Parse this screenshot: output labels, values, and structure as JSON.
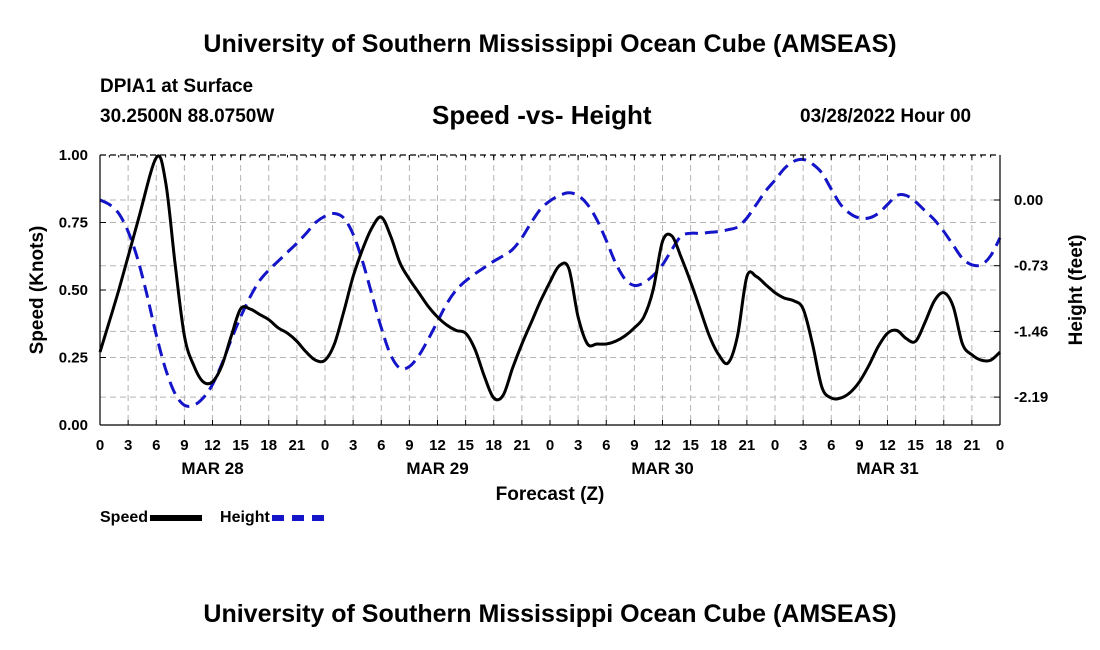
{
  "header": {
    "title": "University of Southern Mississippi Ocean Cube (AMSEAS)",
    "station": "DPIA1 at Surface",
    "coords": "30.2500N  88.0750W",
    "datetime": "03/28/2022 Hour 00"
  },
  "footer": {
    "title": "University of Southern Mississippi Ocean Cube (AMSEAS)"
  },
  "chart_data": {
    "type": "line",
    "title": "Speed -vs- Height",
    "xlabel": "Forecast (Z)",
    "ylabel_left": "Speed (Knots)",
    "ylabel_right": "Height (feet)",
    "x_unit": "forecast hour",
    "xlim": [
      0,
      96
    ],
    "ylim_left": [
      0,
      1.0
    ],
    "ylim_right": [
      -2.5,
      0.5
    ],
    "grid": true,
    "x_ticks": [
      0,
      3,
      6,
      9,
      12,
      15,
      18,
      21,
      24,
      27,
      30,
      33,
      36,
      39,
      42,
      45,
      48,
      51,
      54,
      57,
      60,
      63,
      66,
      69,
      72,
      75,
      78,
      81,
      84,
      87,
      90,
      93,
      96
    ],
    "x_tick_labels": [
      "0",
      "3",
      "6",
      "9",
      "12",
      "15",
      "18",
      "21",
      "0",
      "3",
      "6",
      "9",
      "12",
      "15",
      "18",
      "21",
      "0",
      "3",
      "6",
      "9",
      "12",
      "15",
      "18",
      "21",
      "0",
      "3",
      "6",
      "9",
      "12",
      "15",
      "18",
      "21",
      "0"
    ],
    "day_labels": [
      {
        "label": "MAR 28",
        "hour": 12
      },
      {
        "label": "MAR 29",
        "hour": 36
      },
      {
        "label": "MAR 30",
        "hour": 60
      },
      {
        "label": "MAR 31",
        "hour": 84
      }
    ],
    "y_left_ticks": [
      0.0,
      0.25,
      0.5,
      0.75,
      1.0
    ],
    "y_left_tick_labels": [
      "0.00",
      "0.25",
      "0.50",
      "0.75",
      "1.00"
    ],
    "y_right_ticks": [
      0.0,
      -0.73,
      -1.46,
      -2.19
    ],
    "y_right_tick_labels": [
      "0.00",
      "-0.73",
      "-1.46",
      "-2.19"
    ],
    "series": [
      {
        "name": "Speed",
        "axis": "left",
        "color": "#000000",
        "dash": "solid",
        "points": [
          [
            0,
            0.27
          ],
          [
            2,
            0.5
          ],
          [
            4,
            0.75
          ],
          [
            6,
            0.99
          ],
          [
            7,
            0.9
          ],
          [
            8,
            0.6
          ],
          [
            9,
            0.33
          ],
          [
            10,
            0.22
          ],
          [
            11,
            0.16
          ],
          [
            12,
            0.16
          ],
          [
            13,
            0.22
          ],
          [
            14,
            0.33
          ],
          [
            15,
            0.43
          ],
          [
            16,
            0.43
          ],
          [
            17,
            0.41
          ],
          [
            18,
            0.39
          ],
          [
            19,
            0.36
          ],
          [
            20,
            0.34
          ],
          [
            21,
            0.31
          ],
          [
            22,
            0.27
          ],
          [
            23,
            0.24
          ],
          [
            24,
            0.24
          ],
          [
            25,
            0.3
          ],
          [
            26,
            0.42
          ],
          [
            27,
            0.55
          ],
          [
            28,
            0.65
          ],
          [
            29,
            0.73
          ],
          [
            30,
            0.77
          ],
          [
            31,
            0.7
          ],
          [
            32,
            0.6
          ],
          [
            33,
            0.54
          ],
          [
            34,
            0.49
          ],
          [
            35,
            0.44
          ],
          [
            36,
            0.4
          ],
          [
            37,
            0.37
          ],
          [
            38,
            0.35
          ],
          [
            39,
            0.34
          ],
          [
            40,
            0.28
          ],
          [
            41,
            0.18
          ],
          [
            42,
            0.1
          ],
          [
            43,
            0.11
          ],
          [
            44,
            0.21
          ],
          [
            45,
            0.3
          ],
          [
            46,
            0.38
          ],
          [
            47,
            0.46
          ],
          [
            48,
            0.53
          ],
          [
            49,
            0.59
          ],
          [
            50,
            0.58
          ],
          [
            51,
            0.4
          ],
          [
            52,
            0.3
          ],
          [
            53,
            0.3
          ],
          [
            54,
            0.3
          ],
          [
            55,
            0.31
          ],
          [
            56,
            0.33
          ],
          [
            57,
            0.36
          ],
          [
            58,
            0.4
          ],
          [
            59,
            0.5
          ],
          [
            60,
            0.68
          ],
          [
            61,
            0.7
          ],
          [
            62,
            0.62
          ],
          [
            63,
            0.53
          ],
          [
            64,
            0.43
          ],
          [
            65,
            0.33
          ],
          [
            66,
            0.26
          ],
          [
            67,
            0.23
          ],
          [
            68,
            0.33
          ],
          [
            69,
            0.55
          ],
          [
            70,
            0.55
          ],
          [
            71,
            0.52
          ],
          [
            72,
            0.49
          ],
          [
            73,
            0.47
          ],
          [
            74,
            0.46
          ],
          [
            75,
            0.43
          ],
          [
            76,
            0.3
          ],
          [
            77,
            0.14
          ],
          [
            78,
            0.1
          ],
          [
            79,
            0.1
          ],
          [
            80,
            0.12
          ],
          [
            81,
            0.16
          ],
          [
            82,
            0.22
          ],
          [
            83,
            0.29
          ],
          [
            84,
            0.34
          ],
          [
            85,
            0.35
          ],
          [
            86,
            0.32
          ],
          [
            87,
            0.31
          ],
          [
            88,
            0.38
          ],
          [
            89,
            0.46
          ],
          [
            90,
            0.49
          ],
          [
            91,
            0.44
          ],
          [
            92,
            0.3
          ],
          [
            93,
            0.26
          ],
          [
            94,
            0.24
          ],
          [
            95,
            0.24
          ],
          [
            96,
            0.27
          ]
        ]
      },
      {
        "name": "Height",
        "axis": "right",
        "color": "#1414c8",
        "dash": "dashed",
        "points": [
          [
            0,
            0.0
          ],
          [
            1,
            -0.05
          ],
          [
            2,
            -0.15
          ],
          [
            3,
            -0.35
          ],
          [
            4,
            -0.65
          ],
          [
            5,
            -1.05
          ],
          [
            6,
            -1.5
          ],
          [
            7,
            -1.88
          ],
          [
            8,
            -2.15
          ],
          [
            9,
            -2.28
          ],
          [
            10,
            -2.28
          ],
          [
            11,
            -2.2
          ],
          [
            12,
            -2.05
          ],
          [
            13,
            -1.82
          ],
          [
            14,
            -1.55
          ],
          [
            15,
            -1.3
          ],
          [
            16,
            -1.08
          ],
          [
            17,
            -0.9
          ],
          [
            18,
            -0.78
          ],
          [
            19,
            -0.68
          ],
          [
            20,
            -0.58
          ],
          [
            21,
            -0.48
          ],
          [
            22,
            -0.37
          ],
          [
            23,
            -0.25
          ],
          [
            24,
            -0.18
          ],
          [
            25,
            -0.15
          ],
          [
            26,
            -0.2
          ],
          [
            27,
            -0.38
          ],
          [
            28,
            -0.68
          ],
          [
            29,
            -1.05
          ],
          [
            30,
            -1.42
          ],
          [
            31,
            -1.72
          ],
          [
            32,
            -1.87
          ],
          [
            33,
            -1.85
          ],
          [
            34,
            -1.73
          ],
          [
            35,
            -1.55
          ],
          [
            36,
            -1.35
          ],
          [
            37,
            -1.15
          ],
          [
            38,
            -1.0
          ],
          [
            39,
            -0.9
          ],
          [
            40,
            -0.82
          ],
          [
            41,
            -0.75
          ],
          [
            42,
            -0.68
          ],
          [
            43,
            -0.62
          ],
          [
            44,
            -0.55
          ],
          [
            45,
            -0.42
          ],
          [
            46,
            -0.25
          ],
          [
            47,
            -0.1
          ],
          [
            48,
            -0.01
          ],
          [
            49,
            0.05
          ],
          [
            50,
            0.08
          ],
          [
            51,
            0.05
          ],
          [
            52,
            -0.05
          ],
          [
            53,
            -0.22
          ],
          [
            54,
            -0.45
          ],
          [
            55,
            -0.7
          ],
          [
            56,
            -0.88
          ],
          [
            57,
            -0.95
          ],
          [
            58,
            -0.92
          ],
          [
            59,
            -0.84
          ],
          [
            60,
            -0.72
          ],
          [
            61,
            -0.55
          ],
          [
            62,
            -0.4
          ],
          [
            63,
            -0.37
          ],
          [
            64,
            -0.37
          ],
          [
            65,
            -0.36
          ],
          [
            66,
            -0.35
          ],
          [
            67,
            -0.33
          ],
          [
            68,
            -0.3
          ],
          [
            69,
            -0.2
          ],
          [
            70,
            -0.05
          ],
          [
            71,
            0.1
          ],
          [
            72,
            0.22
          ],
          [
            73,
            0.35
          ],
          [
            74,
            0.43
          ],
          [
            75,
            0.45
          ],
          [
            76,
            0.4
          ],
          [
            77,
            0.3
          ],
          [
            78,
            0.12
          ],
          [
            79,
            -0.05
          ],
          [
            80,
            -0.15
          ],
          [
            81,
            -0.2
          ],
          [
            82,
            -0.2
          ],
          [
            83,
            -0.15
          ],
          [
            84,
            -0.05
          ],
          [
            85,
            0.05
          ],
          [
            86,
            0.05
          ],
          [
            87,
            -0.02
          ],
          [
            88,
            -0.12
          ],
          [
            89,
            -0.22
          ],
          [
            90,
            -0.35
          ],
          [
            91,
            -0.5
          ],
          [
            92,
            -0.65
          ],
          [
            93,
            -0.72
          ],
          [
            94,
            -0.72
          ],
          [
            95,
            -0.62
          ],
          [
            96,
            -0.42
          ]
        ]
      }
    ],
    "legend": [
      "Speed",
      "Height"
    ],
    "legend_position": "bottom-left"
  }
}
